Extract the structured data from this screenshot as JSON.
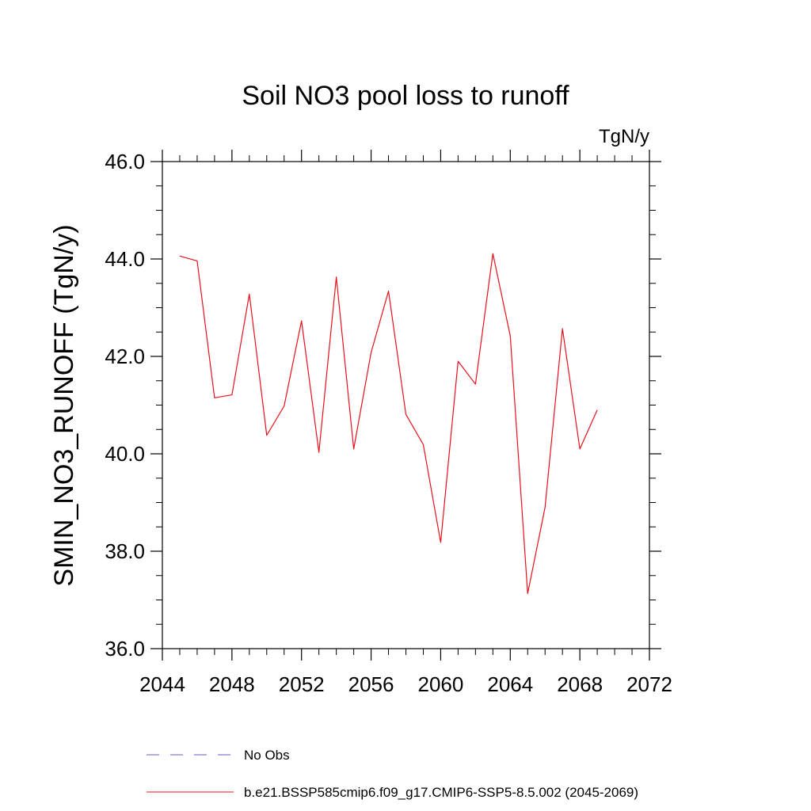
{
  "chart_data": {
    "type": "line",
    "title": "Soil NO3 pool loss to runoff",
    "units_label": "TgN/y",
    "ylabel": "SMIN_NO3_RUNOFF  (TgN/y)",
    "xlabel": "",
    "xlim": [
      2044,
      2072
    ],
    "ylim": [
      36.0,
      46.0
    ],
    "x_ticks": [
      "2044",
      "2048",
      "2052",
      "2056",
      "2060",
      "2064",
      "2068",
      "2072"
    ],
    "y_ticks": [
      "36.0",
      "38.0",
      "40.0",
      "42.0",
      "44.0",
      "46.0"
    ],
    "series": [
      {
        "name": "b.e21.BSSP585cmip6.f09_g17.CMIP6-SSP5-8.5.002 (2045-2069)",
        "color": "#e8101a",
        "dash": "solid",
        "x": [
          2045,
          2046,
          2047,
          2048,
          2049,
          2050,
          2051,
          2052,
          2053,
          2054,
          2055,
          2056,
          2057,
          2058,
          2059,
          2060,
          2061,
          2062,
          2063,
          2064,
          2065,
          2066,
          2067,
          2068,
          2069
        ],
        "y": [
          44.06,
          43.96,
          41.15,
          41.21,
          43.28,
          40.38,
          40.98,
          42.73,
          40.03,
          43.63,
          40.1,
          42.08,
          43.34,
          40.81,
          40.19,
          38.18,
          41.9,
          41.43,
          44.11,
          42.42,
          37.13,
          38.9,
          42.57,
          40.1,
          40.9
        ]
      }
    ],
    "legend": [
      {
        "label": "No Obs",
        "color": "#6a5acd",
        "dash": "dashed"
      },
      {
        "label": "b.e21.BSSP585cmip6.f09_g17.CMIP6-SSP5-8.5.002 (2045-2069)",
        "color": "#e8101a",
        "dash": "solid"
      }
    ],
    "legend_position": "bottom",
    "grid": false
  }
}
